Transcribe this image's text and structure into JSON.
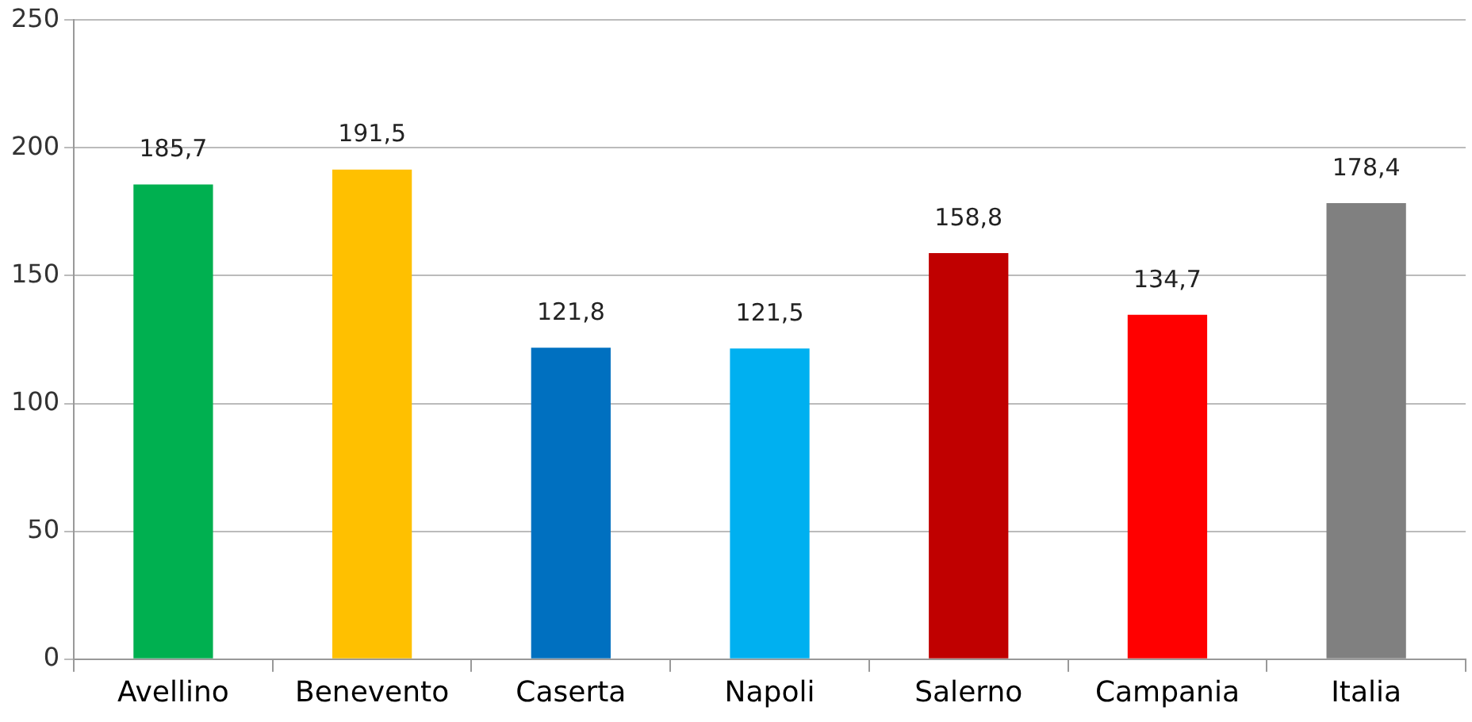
{
  "chart_data": {
    "type": "bar",
    "categories": [
      "Avellino",
      "Benevento",
      "Caserta",
      "Napoli",
      "Salerno",
      "Campania",
      "Italia"
    ],
    "values": [
      185.7,
      191.5,
      121.8,
      121.5,
      158.8,
      134.7,
      178.4
    ],
    "colors": [
      "#00b050",
      "#ffc000",
      "#0070c0",
      "#00b0f0",
      "#c00000",
      "#ff0000",
      "#808080"
    ],
    "value_labels": [
      "185,7",
      "191,5",
      "121,8",
      "121,5",
      "158,8",
      "134,7",
      "178,4"
    ],
    "ylim": [
      0,
      250
    ],
    "yticks": [
      0,
      50,
      100,
      150,
      200,
      250
    ],
    "grid": "y",
    "legend": false
  }
}
